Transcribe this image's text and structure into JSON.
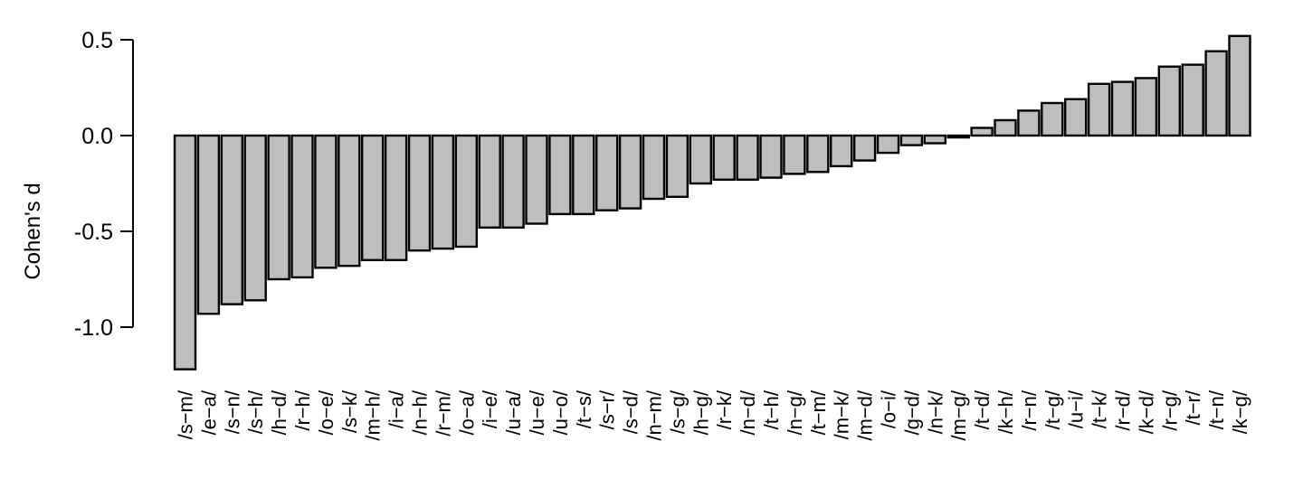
{
  "chart_data": {
    "type": "bar",
    "ylabel": "Cohen's d",
    "xlabel": "",
    "ylim": [
      -1.22,
      0.52
    ],
    "yticks": [
      0.5,
      0.0,
      -0.5,
      -1.0
    ],
    "ytick_labels": [
      "0.5",
      "0.0",
      "-0.5",
      "-1.0"
    ],
    "grid": false,
    "bar_color": "#bebebe",
    "edge_color": "#000000",
    "categories": [
      "/s−m/",
      "/e−a/",
      "/s−n/",
      "/s−h/",
      "/h−d/",
      "/r−h/",
      "/o−e/",
      "/s−k/",
      "/m−h/",
      "/i−a/",
      "/n−h/",
      "/r−m/",
      "/o−a/",
      "/i−e/",
      "/u−a/",
      "/u−e/",
      "/u−o/",
      "/t−s/",
      "/s−r/",
      "/s−d/",
      "/n−m/",
      "/s−g/",
      "/h−g/",
      "/r−k/",
      "/n−d/",
      "/t−h/",
      "/n−g/",
      "/t−m/",
      "/m−k/",
      "/m−d/",
      "/o−i/",
      "/g−d/",
      "/n−k/",
      "/m−g/",
      "/t−d/",
      "/k−h/",
      "/r−n/",
      "/t−g/",
      "/u−i/",
      "/t−k/",
      "/r−d/",
      "/k−d/",
      "/r−g/",
      "/t−r/",
      "/t−n/",
      "/k−g/"
    ],
    "values": [
      -1.22,
      -0.93,
      -0.88,
      -0.86,
      -0.75,
      -0.74,
      -0.69,
      -0.68,
      -0.65,
      -0.65,
      -0.6,
      -0.59,
      -0.58,
      -0.48,
      -0.48,
      -0.46,
      -0.41,
      -0.41,
      -0.39,
      -0.38,
      -0.33,
      -0.32,
      -0.25,
      -0.23,
      -0.23,
      -0.22,
      -0.2,
      -0.19,
      -0.16,
      -0.13,
      -0.09,
      -0.05,
      -0.04,
      -0.01,
      0.04,
      0.08,
      0.13,
      0.17,
      0.19,
      0.27,
      0.28,
      0.3,
      0.36,
      0.37,
      0.44,
      0.52
    ]
  }
}
